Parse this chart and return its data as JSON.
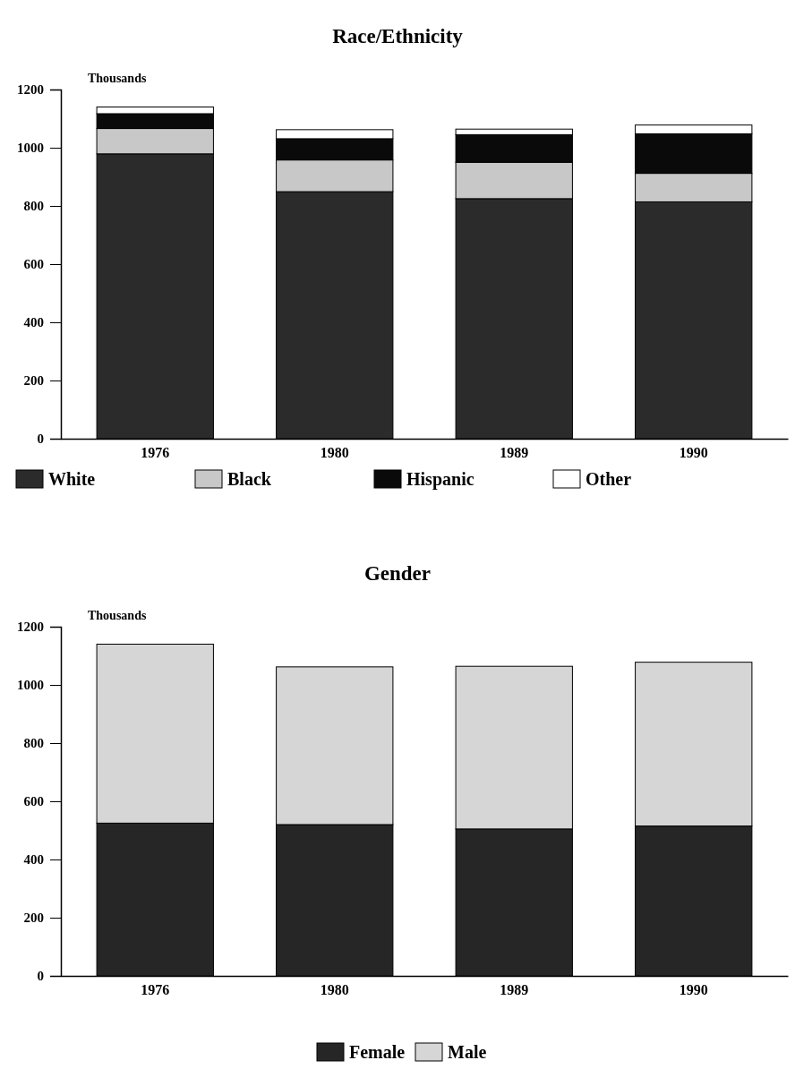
{
  "chart_data": [
    {
      "type": "bar",
      "stacked": true,
      "title": "Race/Ethnicity",
      "ylabel": "Thousands",
      "categories": [
        "1976",
        "1980",
        "1989",
        "1990"
      ],
      "ylim": [
        0,
        1200
      ],
      "yticks": [
        0,
        200,
        400,
        600,
        800,
        1000,
        1200
      ],
      "grid": false,
      "legend": "bottom",
      "series": [
        {
          "name": "White",
          "color": "#2b2b2b",
          "values": [
            979,
            849,
            825,
            814
          ]
        },
        {
          "name": "Black",
          "color": "#c8c8c8",
          "values": [
            87,
            109,
            125,
            98
          ]
        },
        {
          "name": "Hispanic",
          "color": "#0a0a0a",
          "values": [
            51,
            73,
            95,
            136
          ]
        },
        {
          "name": "Other",
          "color": "#ffffff",
          "values": [
            23,
            31,
            19,
            30
          ]
        }
      ]
    },
    {
      "type": "bar",
      "stacked": true,
      "title": "Gender",
      "ylabel": "Thousands",
      "categories": [
        "1976",
        "1980",
        "1989",
        "1990"
      ],
      "ylim": [
        0,
        1200
      ],
      "yticks": [
        0,
        200,
        400,
        600,
        800,
        1000,
        1200
      ],
      "grid": false,
      "legend": "bottom",
      "series": [
        {
          "name": "Female",
          "color": "#262626",
          "values": [
            525,
            520,
            505,
            515
          ]
        },
        {
          "name": "Male",
          "color": "#d6d6d6",
          "values": [
            615,
            542,
            559,
            563
          ]
        }
      ]
    }
  ]
}
